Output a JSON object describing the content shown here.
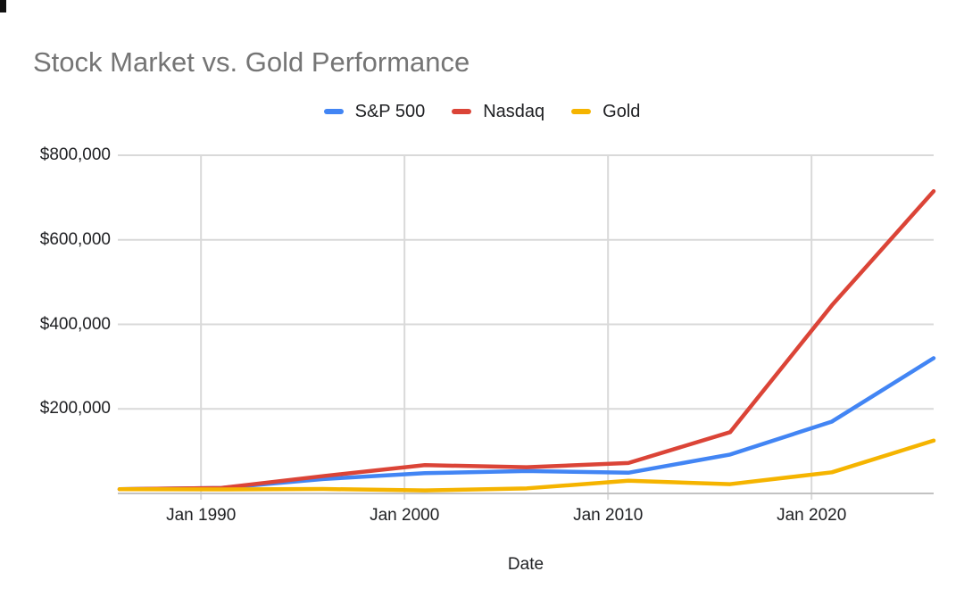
{
  "chart_data": {
    "type": "line",
    "title": "Stock Market vs. Gold Performance",
    "xlabel": "Date",
    "ylabel": "",
    "legend_position": "top-center",
    "grid": "horizontal-and-decade-vertical",
    "xlim": [
      1986,
      2026
    ],
    "ylim": [
      0,
      800000
    ],
    "x": [
      "Jan 1986",
      "Jan 1991",
      "Jan 1996",
      "Jan 2001",
      "Jan 2006",
      "Jan 2011",
      "Jan 2016",
      "Jan 2021",
      "Jan 2026"
    ],
    "x_numeric": [
      1986,
      1991,
      1996,
      2001,
      2006,
      2011,
      2016,
      2021,
      2026
    ],
    "x_axis_ticks": [
      {
        "label": "Jan 1990",
        "year": 1990
      },
      {
        "label": "Jan 2000",
        "year": 2000
      },
      {
        "label": "Jan 2010",
        "year": 2010
      },
      {
        "label": "Jan 2020",
        "year": 2020
      }
    ],
    "y_axis_ticks": [
      {
        "label": "$200,000",
        "value": 200000
      },
      {
        "label": "$400,000",
        "value": 400000
      },
      {
        "label": "$600,000",
        "value": 600000
      },
      {
        "label": "$800,000",
        "value": 800000
      }
    ],
    "series": [
      {
        "name": "S&P 500",
        "color": "#4285f4",
        "values": [
          10000,
          13000,
          34000,
          48000,
          53000,
          49000,
          92000,
          170000,
          320000
        ]
      },
      {
        "name": "Nasdaq",
        "color": "#db4437",
        "values": [
          10000,
          13000,
          41000,
          67000,
          62000,
          72000,
          145000,
          445000,
          715000
        ]
      },
      {
        "name": "Gold",
        "color": "#f5b400",
        "values": [
          10000,
          9500,
          10500,
          7000,
          12000,
          30000,
          22000,
          50000,
          125000
        ]
      }
    ],
    "style": {
      "title_color": "#757575",
      "axis_text_color": "#202124",
      "gridline_color": "#d9d9d9",
      "axis_line_color": "#c2c2c2",
      "background_color": "#ffffff"
    }
  }
}
